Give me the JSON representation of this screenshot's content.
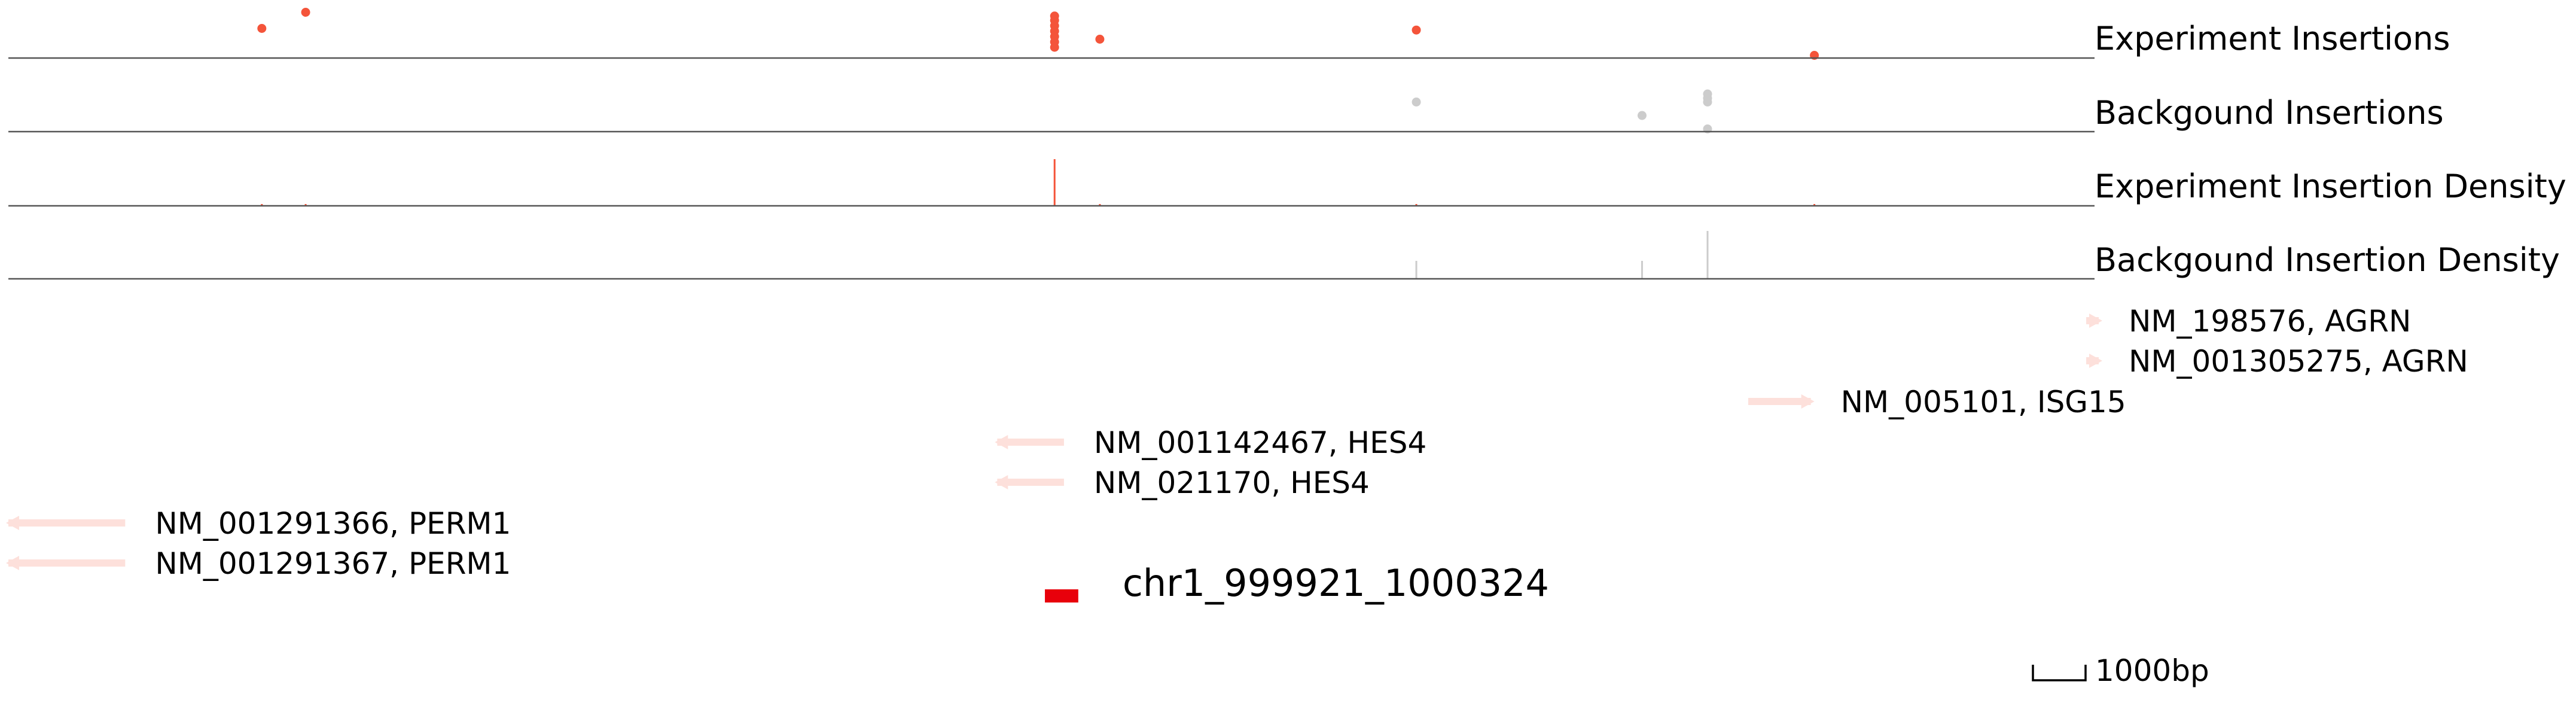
{
  "colors": {
    "experiment": "#f4543a",
    "background": "#cccccc",
    "gene": "#fde0db",
    "region": "#e8000b",
    "axis": "#555555"
  },
  "tracks": {
    "experiment_insertions": {
      "label": "Experiment Insertions",
      "points": [
        {
          "x": 0.1215,
          "level": 0.55
        },
        {
          "x": 0.1425,
          "level": 0.85
        },
        {
          "x": 0.5015,
          "level": 0.2
        },
        {
          "x": 0.5015,
          "level": 0.3
        },
        {
          "x": 0.5015,
          "level": 0.4
        },
        {
          "x": 0.5015,
          "level": 0.5
        },
        {
          "x": 0.5015,
          "level": 0.6
        },
        {
          "x": 0.5015,
          "level": 0.7
        },
        {
          "x": 0.5015,
          "level": 0.78
        },
        {
          "x": 0.5232,
          "level": 0.35
        },
        {
          "x": 0.6749,
          "level": 0.52
        },
        {
          "x": 0.8657,
          "level": 0.05
        }
      ]
    },
    "background_insertions": {
      "label": "Backgound Insertions",
      "points": [
        {
          "x": 0.6749,
          "level": 0.55
        },
        {
          "x": 0.7831,
          "level": 0.3
        },
        {
          "x": 0.8145,
          "level": 0.05
        },
        {
          "x": 0.8145,
          "level": 0.55
        },
        {
          "x": 0.8145,
          "level": 0.62
        },
        {
          "x": 0.8145,
          "level": 0.7
        }
      ]
    },
    "experiment_density": {
      "label": "Experiment Insertion Density",
      "bars": [
        {
          "x": 0.1215,
          "level": 0.03
        },
        {
          "x": 0.1425,
          "level": 0.03
        },
        {
          "x": 0.5015,
          "level": 0.78
        },
        {
          "x": 0.5232,
          "level": 0.03
        },
        {
          "x": 0.6749,
          "level": 0.03
        },
        {
          "x": 0.8657,
          "level": 0.03
        }
      ]
    },
    "background_density": {
      "label": "Backgound Insertion Density",
      "bars": [
        {
          "x": 0.6749,
          "level": 0.3
        },
        {
          "x": 0.7831,
          "level": 0.3
        },
        {
          "x": 0.8145,
          "level": 0.8
        }
      ]
    }
  },
  "genes": [
    {
      "name": "NM_198576, AGRN",
      "start": 0.996,
      "end": 1.002,
      "strand": "+"
    },
    {
      "name": "NM_001305275, AGRN",
      "start": 0.996,
      "end": 1.002,
      "strand": "+"
    },
    {
      "name": "NM_005101, ISG15",
      "start": 0.834,
      "end": 0.864,
      "strand": "+"
    },
    {
      "name": "NM_001142467, HES4",
      "start": 0.474,
      "end": 0.506,
      "strand": "-"
    },
    {
      "name": "NM_021170, HES4",
      "start": 0.474,
      "end": 0.506,
      "strand": "-"
    },
    {
      "name": "NM_001291366, PERM1",
      "start": 0.0,
      "end": 0.056,
      "strand": "-"
    },
    {
      "name": "NM_001291367, PERM1",
      "start": 0.0,
      "end": 0.056,
      "strand": "-"
    }
  ],
  "region": {
    "label": "chr1_999921_1000324",
    "start": 0.496,
    "end": 0.512
  },
  "scale_bar": {
    "label": "1000bp"
  }
}
